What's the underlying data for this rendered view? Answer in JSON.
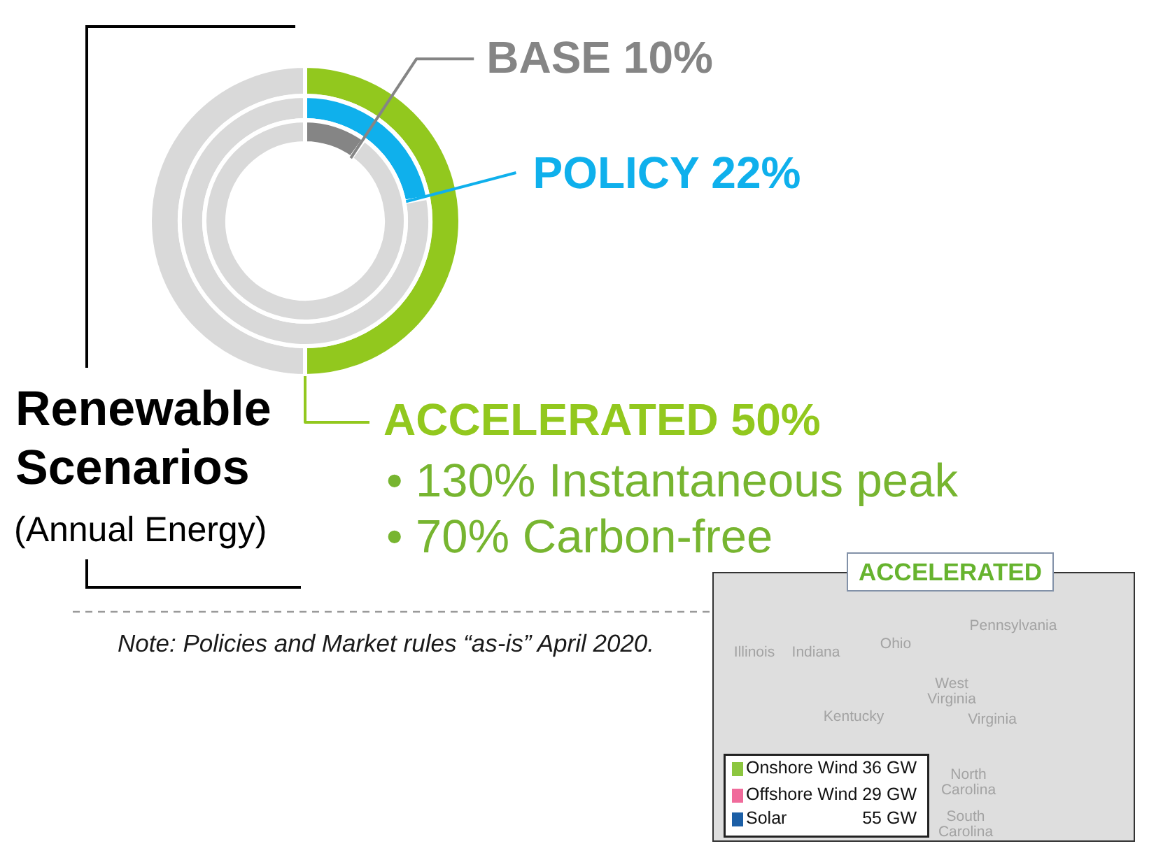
{
  "chart_data": [
    {
      "type": "donut",
      "title": "Renewable Scenarios",
      "subtitle": "(Annual Energy)",
      "categories": [
        null,
        null
      ],
      "series": [
        {
          "name": "ACCELERATED",
          "colors": [
            "#92c81e",
            "#d9d9d9"
          ],
          "values": [
            50,
            50
          ],
          "value_labels": [
            "50%",
            null
          ]
        }
      ],
      "annotations": [
        "• 130% Instantaneous peak",
        "• 70% Carbon-free",
        "Note: Policies and Market rules “as-is” April 2020."
      ]
    },
    {
      "type": "donut",
      "categories": [
        null,
        null
      ],
      "series": [
        {
          "name": "POLICY",
          "colors": [
            "#0fb0ec",
            "#d9d9d9"
          ],
          "values": [
            22,
            78
          ],
          "value_labels": [
            "22%",
            null
          ]
        }
      ]
    },
    {
      "type": "donut",
      "categories": [
        null,
        null
      ],
      "series": [
        {
          "name": "BASE",
          "colors": [
            "#858585",
            "#d9d9d9"
          ],
          "values": [
            10,
            90
          ],
          "value_labels": [
            "10%",
            null
          ]
        }
      ]
    },
    {
      "type": "other",
      "title": "ACCELERATED",
      "annotations": [
        "Illinois",
        "Indiana",
        "Ohio",
        "Pennsylvania",
        "West Virginia",
        "Kentucky",
        "Virginia",
        "North Carolina",
        "South Carolina",
        "Onshore Wind",
        "36 GW",
        "Offshore Wind",
        "29 GW",
        "Solar",
        "55 GW"
      ]
    }
  ]
}
